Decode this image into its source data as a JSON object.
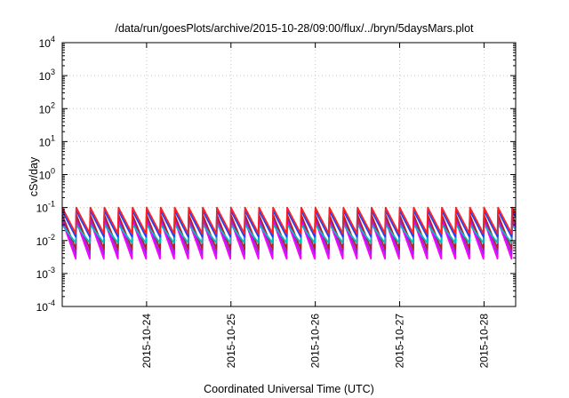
{
  "chart_data": {
    "type": "line",
    "title": "/data/run/goesPlots/archive/2015-10-28/09:00/flux/../bryn/5daysMars.plot",
    "xlabel": "Coordinated Universal Time (UTC)",
    "ylabel": "cSv/day",
    "yscale": "log",
    "ylim": [
      0.0001,
      10000
    ],
    "y_ticks": [
      {
        "base": "10",
        "exp": "4"
      },
      {
        "base": "10",
        "exp": "3"
      },
      {
        "base": "10",
        "exp": "2"
      },
      {
        "base": "10",
        "exp": "1"
      },
      {
        "base": "10",
        "exp": "0"
      },
      {
        "base": "10",
        "exp": "-1"
      },
      {
        "base": "10",
        "exp": "-2"
      },
      {
        "base": "10",
        "exp": "-3"
      },
      {
        "base": "10",
        "exp": "-4"
      }
    ],
    "xlim": [
      "2015-10-23T00:00",
      "2015-10-28T09:00"
    ],
    "x_ticks": [
      "2015-10-24",
      "2015-10-25",
      "2015-10-26",
      "2015-10-27",
      "2015-10-28"
    ],
    "grid": true,
    "cycles_per_day": 6,
    "series": [
      {
        "color": "#ff00ff",
        "peak": 0.04,
        "trough": 0.0025
      },
      {
        "color": "#a020f0",
        "peak": 0.05,
        "trough": 0.0035
      },
      {
        "color": "#b22222",
        "peak": 0.06,
        "trough": 0.005
      },
      {
        "color": "#00bfbf",
        "peak": 0.03,
        "trough": 0.008
      },
      {
        "color": "#1e40ff",
        "peak": 0.08,
        "trough": 0.012
      },
      {
        "color": "#ff2020",
        "peak": 0.1,
        "trough": 0.015
      }
    ]
  }
}
